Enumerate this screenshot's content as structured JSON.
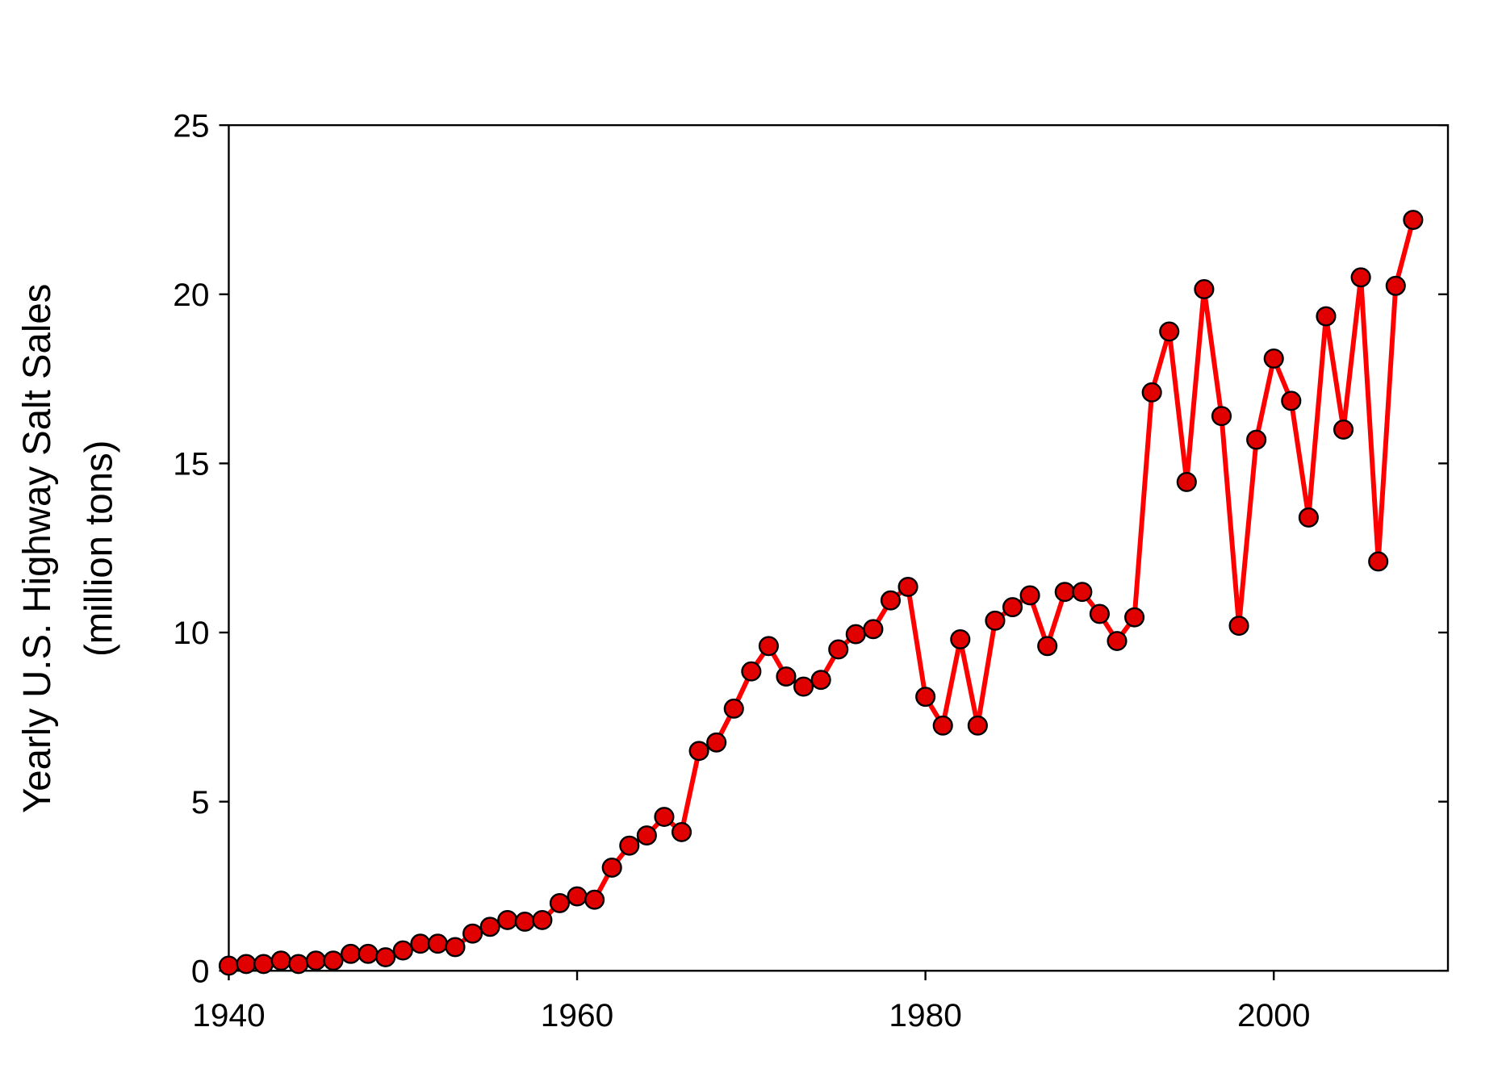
{
  "chart_data": {
    "type": "line",
    "y_label": [
      "Yearly U.S. Highway Salt Sales",
      "(million tons)"
    ],
    "x": [
      1940,
      1941,
      1942,
      1943,
      1944,
      1945,
      1946,
      1947,
      1948,
      1949,
      1950,
      1951,
      1952,
      1953,
      1954,
      1955,
      1956,
      1957,
      1958,
      1959,
      1960,
      1961,
      1962,
      1963,
      1964,
      1965,
      1966,
      1967,
      1968,
      1969,
      1970,
      1971,
      1972,
      1973,
      1974,
      1975,
      1976,
      1977,
      1978,
      1979,
      1980,
      1981,
      1982,
      1983,
      1984,
      1985,
      1986,
      1987,
      1988,
      1989,
      1990,
      1991,
      1992,
      1993,
      1994,
      1995,
      1996,
      1997,
      1998,
      1999,
      2000,
      2001,
      2002,
      2003,
      2004,
      2005,
      2006,
      2007,
      2008
    ],
    "series": [
      {
        "color": "#ff0000",
        "marker_color": "#e00000",
        "values": [
          0.15,
          0.2,
          0.2,
          0.3,
          0.2,
          0.3,
          0.3,
          0.5,
          0.5,
          0.4,
          0.6,
          0.8,
          0.8,
          0.7,
          1.1,
          1.3,
          1.5,
          1.45,
          1.5,
          2.0,
          2.2,
          2.1,
          3.05,
          3.7,
          4.0,
          4.55,
          4.1,
          6.5,
          6.75,
          7.75,
          8.85,
          9.6,
          8.7,
          8.4,
          8.6,
          9.5,
          9.95,
          10.1,
          10.95,
          11.35,
          8.1,
          7.25,
          9.8,
          7.25,
          10.35,
          10.75,
          11.1,
          9.6,
          11.2,
          11.2,
          10.55,
          9.75,
          10.45,
          17.1,
          18.9,
          14.45,
          20.15,
          16.4,
          10.2,
          15.7,
          18.1,
          16.85,
          13.4,
          19.35,
          16.0,
          20.5,
          12.1,
          20.25,
          22.2
        ]
      }
    ],
    "xlim": [
      1940,
      2010
    ],
    "xticks": [
      1940,
      1960,
      1980,
      2000
    ],
    "ylim": [
      0,
      25
    ],
    "yticks": [
      0,
      5,
      10,
      15,
      20,
      25
    ]
  }
}
